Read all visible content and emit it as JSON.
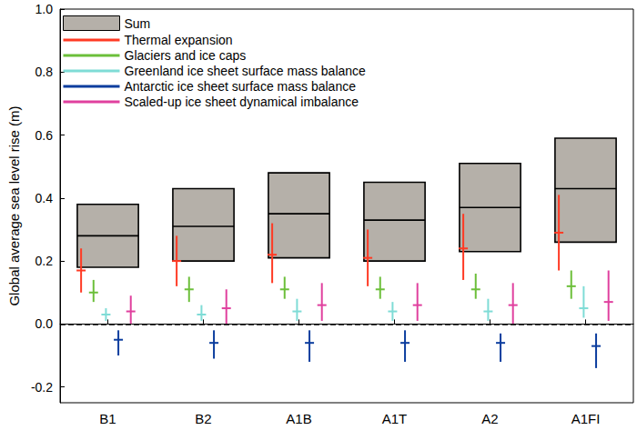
{
  "chart_data": {
    "type": "range",
    "ylabel": "Global average sea level rise (m)",
    "categories": [
      "B1",
      "B2",
      "A1B",
      "A1T",
      "A2",
      "A1FI"
    ],
    "ylim": [
      -0.25,
      1.0
    ],
    "yticks": [
      -0.2,
      {
        "value": 0,
        "label": "0.0"
      },
      0.2,
      0.4,
      0.6,
      0.8,
      {
        "value": 1,
        "label": "1.0"
      }
    ],
    "grid": false,
    "legend": "upper left",
    "reference_line": {
      "value": 0,
      "line_style": "dashed"
    },
    "series": [
      {
        "name": "Sum",
        "type": "box",
        "color": "#b5b0a9",
        "low": [
          0.18,
          0.2,
          0.21,
          0.2,
          0.23,
          0.26
        ],
        "values": [
          0.28,
          0.31,
          0.35,
          0.33,
          0.37,
          0.43
        ],
        "high": [
          0.38,
          0.43,
          0.48,
          0.45,
          0.51,
          0.59
        ]
      },
      {
        "name": "Thermal expansion",
        "type": "errorbar",
        "color": "#ff3a24",
        "low": [
          0.1,
          0.12,
          0.13,
          0.12,
          0.14,
          0.17
        ],
        "values": [
          0.17,
          0.2,
          0.22,
          0.21,
          0.24,
          0.29
        ],
        "high": [
          0.24,
          0.28,
          0.32,
          0.3,
          0.35,
          0.41
        ]
      },
      {
        "name": "Glaciers and ice caps",
        "type": "errorbar",
        "color": "#6cbf3a",
        "low": [
          0.07,
          0.07,
          0.08,
          0.08,
          0.08,
          0.08
        ],
        "values": [
          0.1,
          0.11,
          0.11,
          0.11,
          0.11,
          0.12
        ],
        "high": [
          0.14,
          0.15,
          0.15,
          0.15,
          0.16,
          0.17
        ]
      },
      {
        "name": "Greenland ice sheet surface mass balance",
        "type": "errorbar",
        "color": "#7fdcd6",
        "low": [
          0.01,
          0.01,
          0.01,
          0.01,
          0.01,
          0.02
        ],
        "values": [
          0.03,
          0.03,
          0.04,
          0.04,
          0.04,
          0.05
        ],
        "high": [
          0.05,
          0.06,
          0.08,
          0.07,
          0.08,
          0.12
        ]
      },
      {
        "name": "Antarctic ice sheet surface mass balance",
        "type": "errorbar",
        "color": "#0b3d9e",
        "low": [
          -0.1,
          -0.11,
          -0.12,
          -0.12,
          -0.12,
          -0.14
        ],
        "values": [
          -0.05,
          -0.06,
          -0.06,
          -0.06,
          -0.06,
          -0.07
        ],
        "high": [
          -0.02,
          -0.02,
          -0.02,
          -0.02,
          -0.03,
          -0.03
        ]
      },
      {
        "name": "Scaled-up ice sheet dynamical imbalance",
        "type": "errorbar",
        "color": "#e0409e",
        "low": [
          0.0,
          0.0,
          0.01,
          0.01,
          0.0,
          0.01
        ],
        "values": [
          0.04,
          0.05,
          0.06,
          0.06,
          0.06,
          0.07
        ],
        "high": [
          0.09,
          0.11,
          0.13,
          0.13,
          0.13,
          0.17
        ]
      }
    ]
  }
}
